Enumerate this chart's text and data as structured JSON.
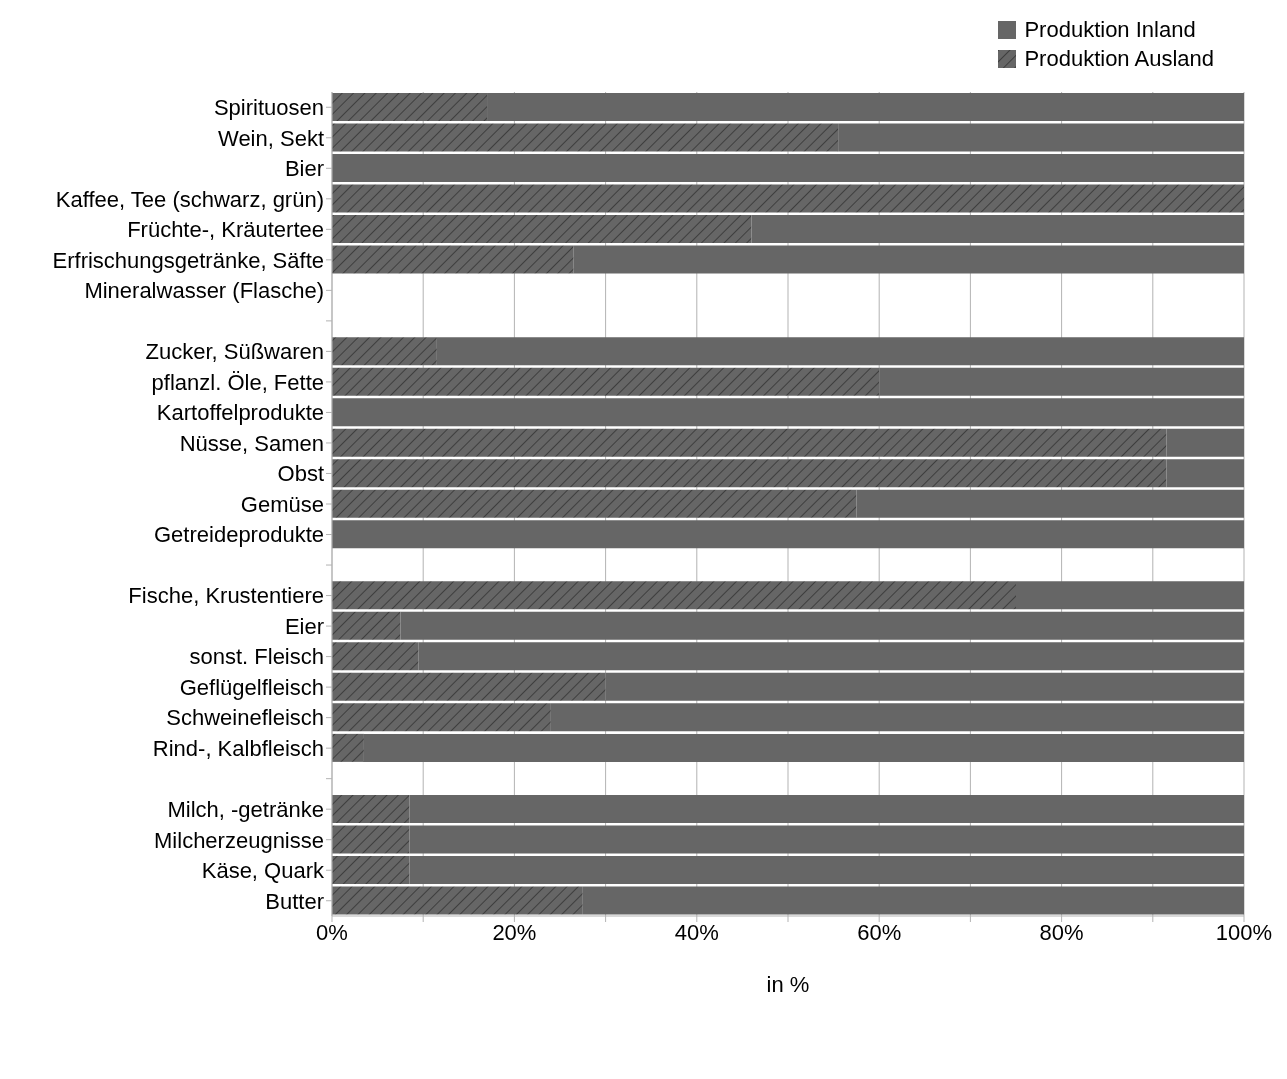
{
  "chart_data": {
    "type": "bar",
    "orientation": "horizontal",
    "stacked": true,
    "xlabel": "in %",
    "categories": [
      "Spirituosen",
      "Wein, Sekt",
      "Bier",
      "Kaffee, Tee (schwarz, grün)",
      "Früchte-, Kräutertee",
      "Erfrischungsgetränke, Säfte",
      "Mineralwasser (Flasche)",
      null,
      "Zucker, Süßwaren",
      "pflanzl. Öle, Fette",
      "Kartoffelprodukte",
      "Nüsse, Samen",
      "Obst",
      "Gemüse",
      "Getreideprodukte",
      null,
      "Fische, Krustentiere",
      "Eier",
      "sonst. Fleisch",
      "Geflügelfleisch",
      "Schweinefleisch",
      "Rind-, Kalbfleisch",
      null,
      "Milch, -getränke",
      "Milcherzeugnisse",
      "Käse, Quark",
      "Butter"
    ],
    "series": [
      {
        "name": "Produktion Ausland",
        "color": "#666666",
        "values": [
          17,
          55.5,
          0,
          100,
          46,
          26.5,
          null,
          null,
          11.5,
          60,
          0,
          91.5,
          91.5,
          57.5,
          0,
          null,
          75,
          7.5,
          9.5,
          30,
          24,
          3.5,
          null,
          8.5,
          8.5,
          8.5,
          27.5
        ]
      },
      {
        "name": "Produktion Inland",
        "color": "#666666",
        "values": [
          83,
          44.5,
          100,
          0,
          54,
          73.5,
          null,
          null,
          88.5,
          40,
          100,
          8.5,
          8.5,
          42.5,
          100,
          null,
          25,
          92.5,
          90.5,
          70,
          76,
          96.5,
          null,
          91.5,
          91.5,
          91.5,
          72.5
        ]
      }
    ],
    "xlim": [
      0,
      100
    ],
    "xticks": [
      {
        "value": 0,
        "label": "0%"
      },
      {
        "value": 10,
        "label": null
      },
      {
        "value": 20,
        "label": "20%"
      },
      {
        "value": 30,
        "label": null
      },
      {
        "value": 40,
        "label": "40%"
      },
      {
        "value": 50,
        "label": null
      },
      {
        "value": 60,
        "label": "60%"
      },
      {
        "value": 70,
        "label": null
      },
      {
        "value": 80,
        "label": "80%"
      },
      {
        "value": 90,
        "label": null
      },
      {
        "value": 100,
        "label": "100%"
      }
    ],
    "grid": "x",
    "legend": "top right"
  }
}
